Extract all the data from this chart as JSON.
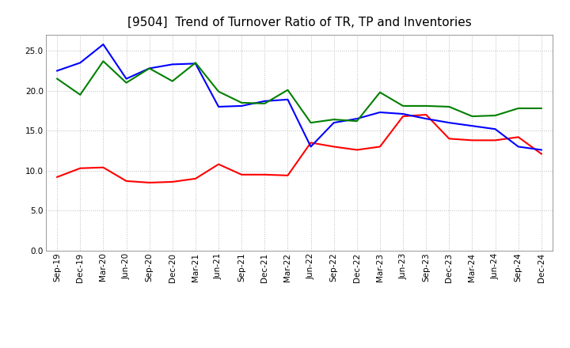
{
  "title": "[9504]  Trend of Turnover Ratio of TR, TP and Inventories",
  "x_labels": [
    "Sep-19",
    "Dec-19",
    "Mar-20",
    "Jun-20",
    "Sep-20",
    "Dec-20",
    "Mar-21",
    "Jun-21",
    "Sep-21",
    "Dec-21",
    "Mar-22",
    "Jun-22",
    "Sep-22",
    "Dec-22",
    "Mar-23",
    "Jun-23",
    "Sep-23",
    "Dec-23",
    "Mar-24",
    "Jun-24",
    "Sep-24",
    "Dec-24"
  ],
  "trade_receivables": [
    9.2,
    10.3,
    10.4,
    8.7,
    8.5,
    8.6,
    9.0,
    10.8,
    9.5,
    9.5,
    9.4,
    13.5,
    13.0,
    12.6,
    13.0,
    16.8,
    17.0,
    14.0,
    13.8,
    13.8,
    14.2,
    12.1
  ],
  "trade_payables": [
    22.5,
    23.5,
    25.8,
    21.5,
    22.8,
    23.3,
    23.4,
    18.0,
    18.1,
    18.7,
    18.9,
    13.0,
    16.0,
    16.5,
    17.3,
    17.1,
    16.5,
    16.0,
    15.6,
    15.2,
    13.0,
    12.6
  ],
  "inventories": [
    21.5,
    19.5,
    23.7,
    21.0,
    22.8,
    21.2,
    23.5,
    19.9,
    18.5,
    18.4,
    20.1,
    16.0,
    16.4,
    16.2,
    19.8,
    18.1,
    18.1,
    18.0,
    16.8,
    16.9,
    17.8,
    17.8
  ],
  "tr_color": "#ff0000",
  "tp_color": "#0000ff",
  "inv_color": "#008000",
  "ylim": [
    0.0,
    27.0
  ],
  "yticks": [
    0.0,
    5.0,
    10.0,
    15.0,
    20.0,
    25.0
  ],
  "background_color": "#ffffff",
  "grid_color": "#bbbbbb",
  "title_fontsize": 11,
  "legend_fontsize": 9,
  "tick_fontsize": 7.5
}
